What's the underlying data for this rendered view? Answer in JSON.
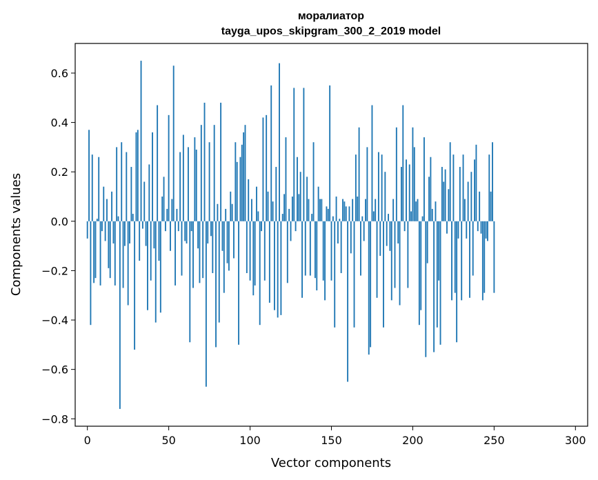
{
  "chart_data": {
    "type": "bar",
    "title": "моралиатор",
    "subtitle": "tayga_upos_skipgram_300_2_2019 model",
    "xlabel": "Vector components",
    "ylabel": "Components values",
    "xlim": [
      -7.5,
      307.5
    ],
    "ylim": [
      -0.83,
      0.72
    ],
    "xticks": [
      0,
      50,
      100,
      150,
      200,
      250,
      300
    ],
    "yticks": [
      -0.8,
      -0.6,
      -0.4,
      -0.2,
      0.0,
      0.2,
      0.4,
      0.6
    ],
    "xtick_labels": [
      "0",
      "50",
      "100",
      "150",
      "200",
      "250",
      "300"
    ],
    "ytick_labels": [
      "−0.8",
      "−0.6",
      "−0.4",
      "−0.2",
      "0.0",
      "0.2",
      "0.4",
      "0.6"
    ],
    "bar_color": "#1f77b4",
    "series": [
      {
        "name": "components",
        "values": [
          -0.07,
          0.37,
          -0.42,
          0.27,
          -0.25,
          -0.23,
          0.01,
          0.26,
          -0.26,
          -0.04,
          0.14,
          -0.08,
          0.09,
          -0.19,
          -0.23,
          0.12,
          -0.09,
          -0.26,
          0.3,
          0.02,
          -0.76,
          0.32,
          -0.27,
          -0.1,
          0.28,
          -0.34,
          -0.09,
          0.22,
          0.03,
          -0.52,
          0.36,
          0.37,
          -0.16,
          0.65,
          -0.03,
          0.16,
          -0.1,
          -0.36,
          0.23,
          -0.24,
          0.36,
          -0.11,
          -0.41,
          0.47,
          -0.16,
          -0.37,
          0.1,
          0.18,
          -0.04,
          0.05,
          0.43,
          -0.12,
          0.09,
          0.63,
          -0.26,
          0.05,
          -0.04,
          0.28,
          -0.22,
          0.35,
          -0.08,
          -0.09,
          0.3,
          -0.49,
          -0.04,
          -0.27,
          0.34,
          0.29,
          -0.11,
          -0.25,
          0.39,
          -0.23,
          0.48,
          -0.67,
          -0.09,
          0.32,
          -0.06,
          -0.21,
          0.39,
          -0.51,
          0.07,
          -0.41,
          0.48,
          -0.12,
          -0.29,
          0.05,
          -0.17,
          -0.2,
          0.12,
          0.07,
          -0.15,
          0.32,
          0.24,
          -0.5,
          0.26,
          0.31,
          0.36,
          0.39,
          -0.21,
          0.17,
          -0.24,
          0.09,
          -0.3,
          -0.26,
          0.14,
          0.04,
          -0.42,
          -0.04,
          0.42,
          -0.24,
          0.43,
          0.12,
          -0.33,
          0.55,
          0.08,
          -0.36,
          0.22,
          -0.39,
          0.64,
          -0.38,
          0.03,
          0.11,
          0.34,
          -0.25,
          0.05,
          -0.08,
          0.1,
          0.54,
          -0.04,
          0.26,
          0.11,
          0.2,
          -0.31,
          0.54,
          -0.22,
          0.18,
          0.09,
          -0.22,
          0.03,
          0.32,
          -0.23,
          -0.28,
          0.14,
          0.09,
          0.09,
          -0.24,
          -0.32,
          0.06,
          0.05,
          0.55,
          -0.24,
          0.02,
          -0.43,
          0.1,
          -0.09,
          0.01,
          -0.21,
          0.09,
          0.08,
          0.06,
          -0.65,
          0.06,
          -0.13,
          0.09,
          -0.43,
          0.27,
          0.1,
          0.38,
          -0.22,
          0.02,
          -0.08,
          0.09,
          0.3,
          -0.54,
          -0.51,
          0.47,
          0.04,
          0.09,
          -0.31,
          0.28,
          -0.14,
          0.27,
          -0.43,
          0.2,
          -0.1,
          0.03,
          -0.12,
          -0.32,
          0.09,
          -0.27,
          0.38,
          -0.09,
          -0.34,
          0.22,
          0.47,
          -0.04,
          0.25,
          -0.27,
          0.23,
          0.04,
          0.38,
          0.3,
          0.08,
          0.09,
          -0.42,
          -0.36,
          0.02,
          0.34,
          -0.55,
          -0.17,
          0.18,
          0.26,
          0.05,
          -0.53,
          0.08,
          -0.43,
          -0.24,
          -0.5,
          0.22,
          0.16,
          0.21,
          -0.05,
          0.13,
          0.32,
          -0.32,
          0.27,
          -0.29,
          -0.49,
          -0.07,
          0.22,
          -0.32,
          0.27,
          0.09,
          -0.07,
          0.16,
          -0.31,
          0.2,
          -0.22,
          0.25,
          0.31,
          -0.04,
          0.12,
          -0.05,
          -0.32,
          -0.29,
          -0.07,
          -0.08,
          0.27,
          0.12,
          0.32,
          -0.29
        ]
      }
    ]
  }
}
